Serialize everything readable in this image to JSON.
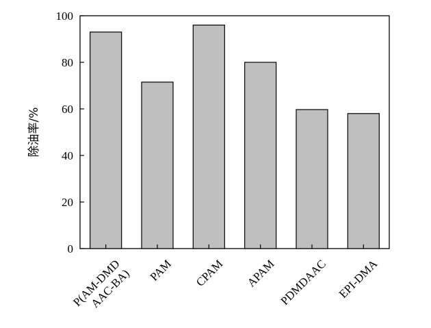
{
  "chart_data": {
    "type": "bar",
    "categories": [
      [
        "P(AM-DMD",
        "AAC-BA)"
      ],
      [
        "PAM"
      ],
      [
        "CPAM"
      ],
      [
        "APAM"
      ],
      [
        "PDMDAAC"
      ],
      [
        "EPI-DMA"
      ]
    ],
    "values": [
      93,
      71.5,
      96,
      80,
      59.7,
      58
    ],
    "title": "",
    "xlabel": "",
    "ylabel": "除油率/%",
    "ylim": [
      0,
      100
    ],
    "yticks": [
      0,
      20,
      40,
      60,
      80,
      100
    ],
    "grid": false,
    "legend": "none",
    "bar_color": "#bfbfbf",
    "bar_edge_color": "#000000"
  }
}
